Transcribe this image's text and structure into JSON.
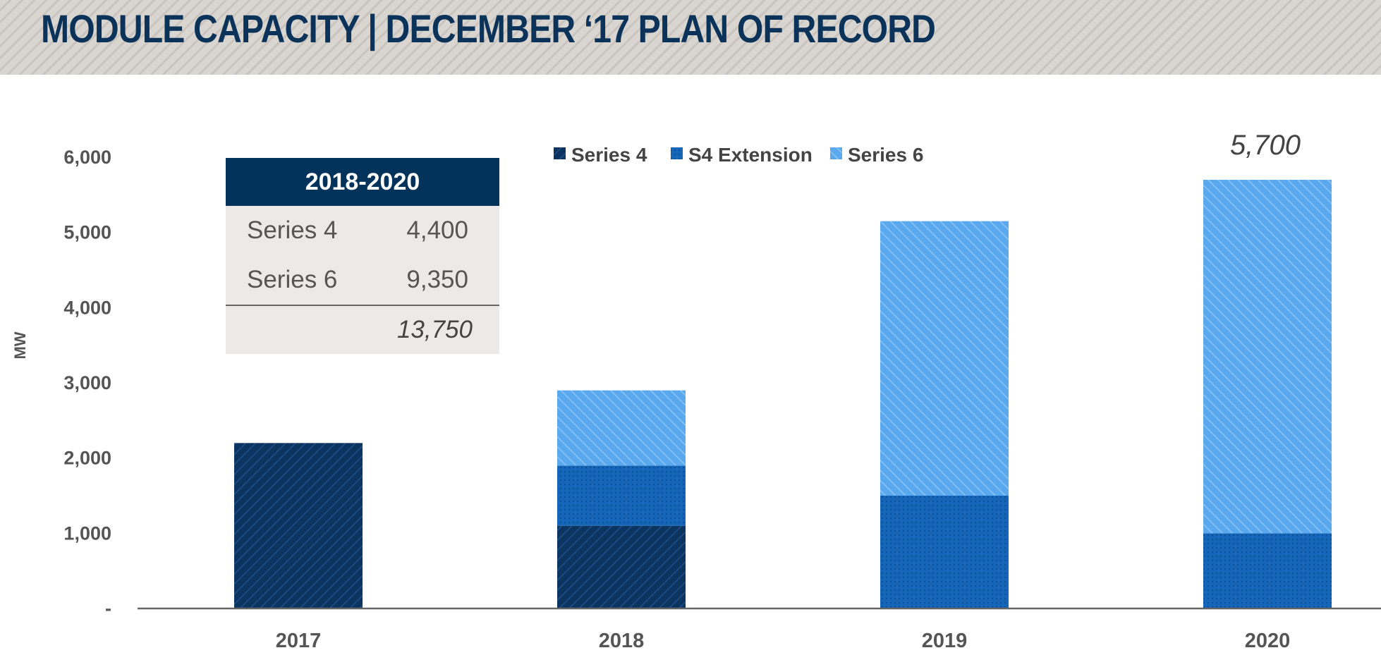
{
  "title": "MODULE CAPACITY | DECEMBER ‘17 PLAN OF RECORD",
  "colors": {
    "series_4": "#0b3461",
    "s4_extension": "#1565b8",
    "series_6": "#5aa8ee",
    "header_text": "#0b3359",
    "table_header": "#03325b"
  },
  "summary_table": {
    "header": "2018-2020",
    "rows": [
      {
        "label": "Series 4",
        "value": "4,400"
      },
      {
        "label": "Series 6",
        "value": "9,350"
      }
    ],
    "total": "13,750"
  },
  "chart_data": {
    "type": "bar",
    "stacked": true,
    "categories": [
      "2017",
      "2018",
      "2019",
      "2020"
    ],
    "series": [
      {
        "name": "Series 4",
        "values": [
          2200,
          1100,
          0,
          0
        ]
      },
      {
        "name": "S4 Extension",
        "values": [
          0,
          800,
          1500,
          1000
        ]
      },
      {
        "name": "Series 6",
        "values": [
          0,
          1000,
          3650,
          4700
        ]
      }
    ],
    "ylabel": "MW",
    "xlabel": "",
    "ylim": [
      0,
      6000
    ],
    "yticks": [
      0,
      1000,
      2000,
      3000,
      4000,
      5000,
      6000
    ],
    "ytick_labels": [
      "-",
      "1,000",
      "2,000",
      "3,000",
      "4,000",
      "5,000",
      "6,000"
    ],
    "annotations": [
      {
        "category": "2020",
        "text": "5,700"
      }
    ],
    "grid": false,
    "legend_position": "top-center"
  }
}
